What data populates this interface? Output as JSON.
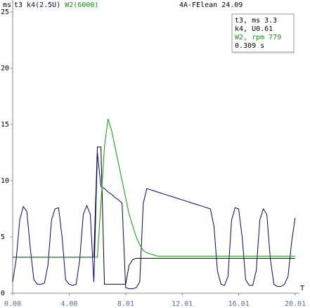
{
  "chart_data": {
    "type": "line",
    "title": "4A-FElean 24.09",
    "y_unit": "ms",
    "x_label": "T",
    "readout": [
      "t3, ms 3.3",
      "k4,  U0.61",
      "W2, rpm 779",
      "0.309 s"
    ],
    "x": [
      0,
      0.25,
      0.5,
      0.75,
      1,
      1.25,
      1.5,
      1.75,
      2,
      2.25,
      2.5,
      2.75,
      3,
      3.25,
      3.5,
      3.75,
      4,
      4.25,
      4.5,
      4.75,
      5,
      5.25,
      5.5,
      5.75,
      6,
      6.25,
      6.5,
      6.75,
      7,
      7.25,
      7.5,
      7.75,
      8,
      8.25,
      8.5,
      8.75,
      9,
      9.25,
      9.5,
      9.75,
      10,
      10.25,
      10.5,
      10.75,
      11,
      11.25,
      11.5,
      11.75,
      12,
      12.25,
      12.5,
      12.75,
      13,
      13.25,
      13.5,
      13.75,
      14,
      14.25,
      14.5,
      14.75,
      15,
      15.25,
      15.5,
      15.75,
      16,
      16.25,
      16.5,
      16.75,
      17,
      17.25,
      17.5,
      17.75,
      18,
      18.25,
      18.5,
      18.75,
      19,
      19.25,
      19.5,
      19.75,
      20
    ],
    "series": [
      {
        "name": "t3",
        "color": "#000000",
        "values": [
          3.2,
          3.2,
          3.2,
          3.2,
          3.2,
          3.2,
          3.2,
          3.2,
          3.2,
          3.2,
          3.2,
          3.2,
          3.2,
          3.2,
          3.2,
          3.2,
          3.2,
          3.2,
          3.2,
          3.2,
          3.2,
          3.2,
          3.2,
          3.2,
          13,
          13,
          0.8,
          0.8,
          0.8,
          0.8,
          0.8,
          0.8,
          0.8,
          2.5,
          3.0,
          3.1,
          3.1,
          3.1,
          3.1,
          3.1,
          3.1,
          3.1,
          3.1,
          3.1,
          3.1,
          3.1,
          3.1,
          3.1,
          3.1,
          3.1,
          3.1,
          3.1,
          3.1,
          3.1,
          3.1,
          3.1,
          3.1,
          3.1,
          3.1,
          3.1,
          3.1,
          3.1,
          3.1,
          3.1,
          3.1,
          3.1,
          3.1,
          3.1,
          3.1,
          3.1,
          3.1,
          3.1,
          3.1,
          3.1,
          3.1,
          3.1,
          3.1,
          3.1,
          3.1,
          3.1,
          3.1
        ]
      },
      {
        "name": "k4(2.5U)",
        "color": "#00007f",
        "values": [
          1.0,
          3,
          6.5,
          7.7,
          7.3,
          4,
          1.2,
          0.8,
          0.8,
          0.9,
          2.5,
          6.5,
          7.5,
          7.6,
          5,
          1.2,
          0.8,
          0.7,
          0.8,
          3,
          7,
          7.8,
          7,
          1,
          12.5,
          9.5,
          9.3,
          9,
          8.8,
          8.5,
          8.3,
          8,
          0.5,
          0.4,
          0.4,
          0.5,
          1,
          8,
          9.3,
          9.2,
          9.1,
          9,
          8.9,
          8.8,
          8.7,
          8.6,
          8.5,
          8.4,
          8.3,
          8.2,
          8.1,
          8,
          7.9,
          7.8,
          7.7,
          7.6,
          7.5,
          6,
          2,
          0.8,
          0.7,
          1.5,
          6.5,
          7.6,
          7.5,
          5,
          1.2,
          0.7,
          0.7,
          2,
          6.5,
          7.5,
          7,
          3,
          0.8,
          0.6,
          0.6,
          0.8,
          1.5,
          4.5,
          6.7
        ]
      },
      {
        "name": "W2(6000)",
        "color": "#00a000",
        "values": [
          3.2,
          3.2,
          3.2,
          3.2,
          3.2,
          3.2,
          3.2,
          3.2,
          3.2,
          3.2,
          3.2,
          3.2,
          3.2,
          3.2,
          3.2,
          3.2,
          3.2,
          3.2,
          3.2,
          3.2,
          3.2,
          3.2,
          3.2,
          3.2,
          3.2,
          8,
          13,
          15.5,
          14.5,
          13,
          11.5,
          10,
          8.5,
          7,
          6,
          5,
          4.3,
          3.8,
          3.6,
          3.5,
          3.4,
          3.3,
          3.3,
          3.3,
          3.3,
          3.3,
          3.3,
          3.3,
          3.3,
          3.3,
          3.3,
          3.3,
          3.3,
          3.3,
          3.3,
          3.3,
          3.3,
          3.3,
          3.3,
          3.3,
          3.3,
          3.3,
          3.3,
          3.3,
          3.3,
          3.3,
          3.3,
          3.3,
          3.3,
          3.3,
          3.3,
          3.3,
          3.3,
          3.3,
          3.3,
          3.3,
          3.3,
          3.3,
          3.3,
          3.3,
          3.3
        ]
      }
    ],
    "xlim": [
      0,
      20.01
    ],
    "xticks": [
      {
        "value": 0,
        "label": "0.00"
      },
      {
        "value": 4,
        "label": "4.00"
      },
      8.01,
      12.01,
      16.01,
      20.01
    ],
    "ylim": [
      0,
      25
    ],
    "yticks": [
      0,
      5,
      10,
      15,
      20,
      25
    ],
    "grid": false
  }
}
